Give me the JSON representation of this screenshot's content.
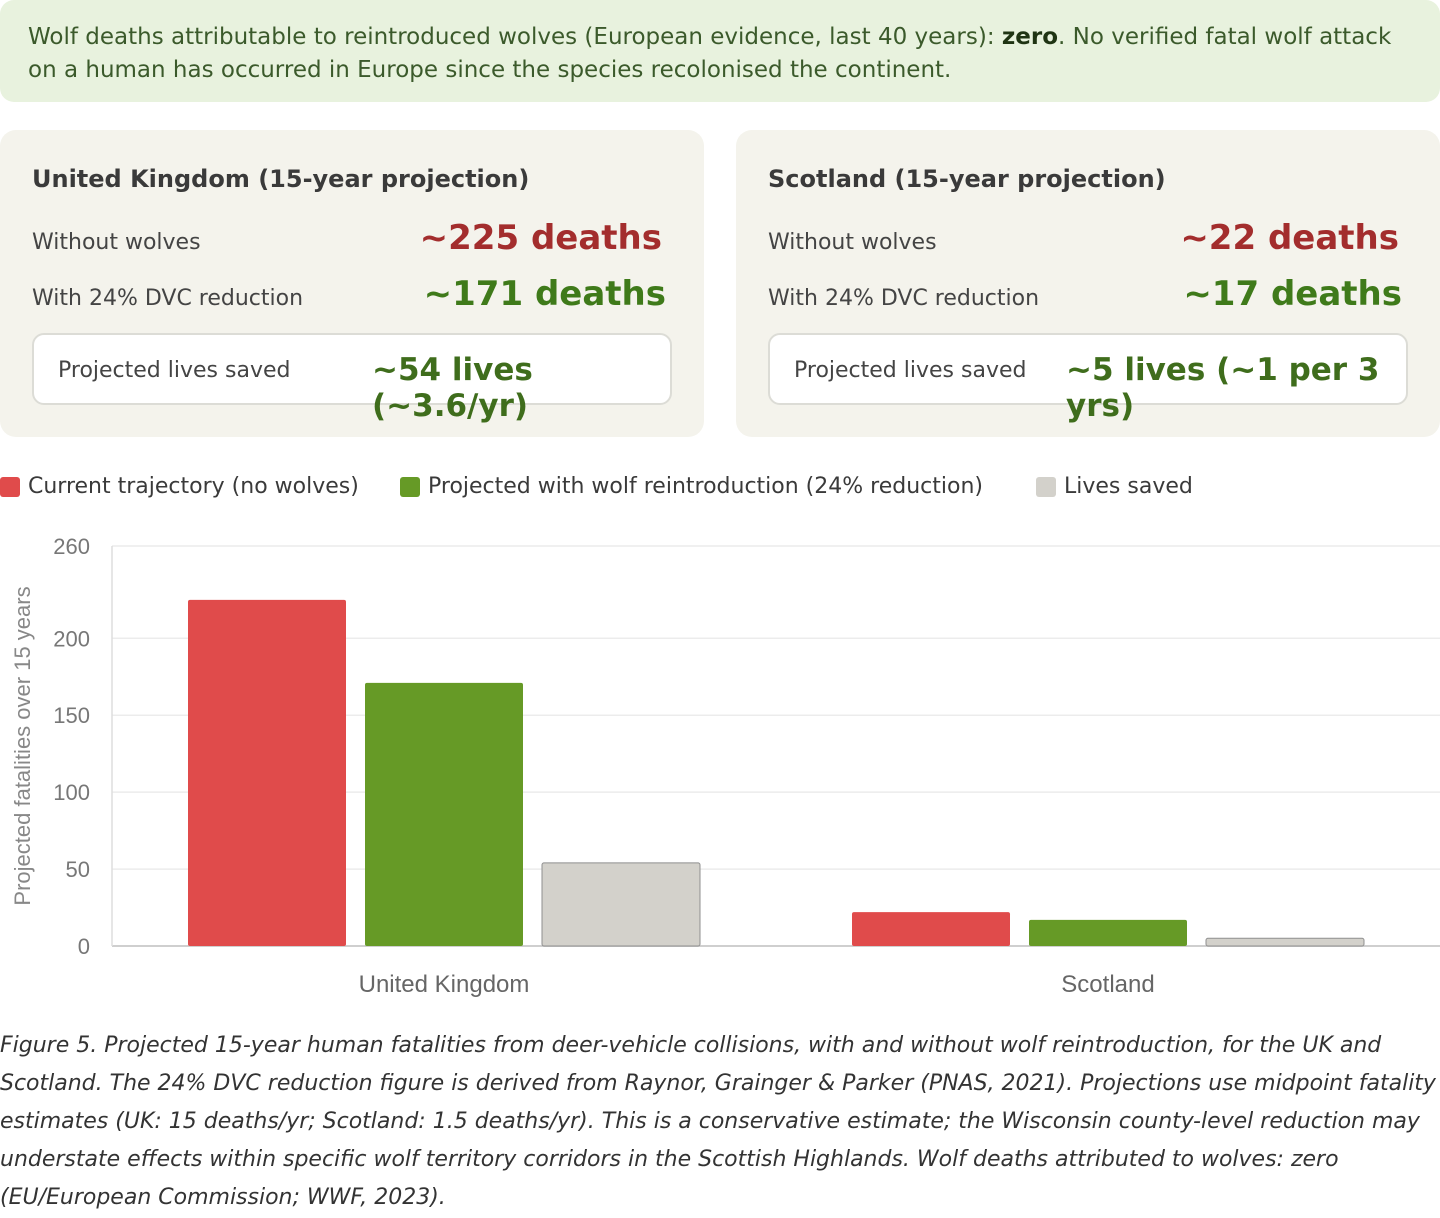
{
  "banner": {
    "prefix": "Wolf deaths attributable to reintroduced wolves (European evidence, last 40 years): ",
    "emphasis": "zero",
    "suffix": ". No verified fatal wolf attack on a human has occurred in Europe since the species recolonised the continent."
  },
  "cards": {
    "uk": {
      "title": "United Kingdom (15-year projection)",
      "without_label": "Without wolves",
      "without_value": "~225 deaths",
      "with_label": "With 24% DVC reduction",
      "with_value": "~171 deaths",
      "saved_label": "Projected lives saved",
      "saved_value": "~54 lives (~3.6/yr)"
    },
    "scotland": {
      "title": "Scotland (15-year projection)",
      "without_label": "Without wolves",
      "without_value": "~22 deaths",
      "with_label": "With 24% DVC reduction",
      "with_value": "~17 deaths",
      "saved_label": "Projected lives saved",
      "saved_value": "~5 lives (~1 per 3 yrs)"
    }
  },
  "colors": {
    "current": "#e04b4b",
    "projected": "#669a26",
    "saved": "#d3d1cb",
    "red_text": "#a32d2d",
    "green_text": "#3f7a1a"
  },
  "chart_data": {
    "type": "bar",
    "categories": [
      "United Kingdom",
      "Scotland"
    ],
    "series": [
      {
        "name": "Current trajectory (no wolves)",
        "values": [
          225,
          22
        ]
      },
      {
        "name": "Projected with wolf reintroduction (24% reduction)",
        "values": [
          171,
          17
        ]
      },
      {
        "name": "Lives saved",
        "values": [
          54,
          5
        ]
      }
    ],
    "xlabel": "",
    "ylabel": "Projected fatalities over 15 years",
    "ylim": [
      0,
      260
    ],
    "yticks": [
      0,
      50,
      100,
      150,
      200,
      260
    ],
    "grid": true,
    "legend_position": "top-left"
  },
  "caption": "Figure 5. Projected 15-year human fatalities from deer-vehicle collisions, with and without wolf reintroduction, for the UK and Scotland. The 24% DVC reduction figure is derived from Raynor, Grainger & Parker (PNAS, 2021). Projections use midpoint fatality estimates (UK: 15 deaths/yr; Scotland: 1.5 deaths/yr). This is a conservative estimate; the Wisconsin county-level reduction may understate effects within specific wolf territory corridors in the Scottish Highlands. Wolf deaths attributed to wolves: zero (EU/European Commission; WWF, 2023)."
}
